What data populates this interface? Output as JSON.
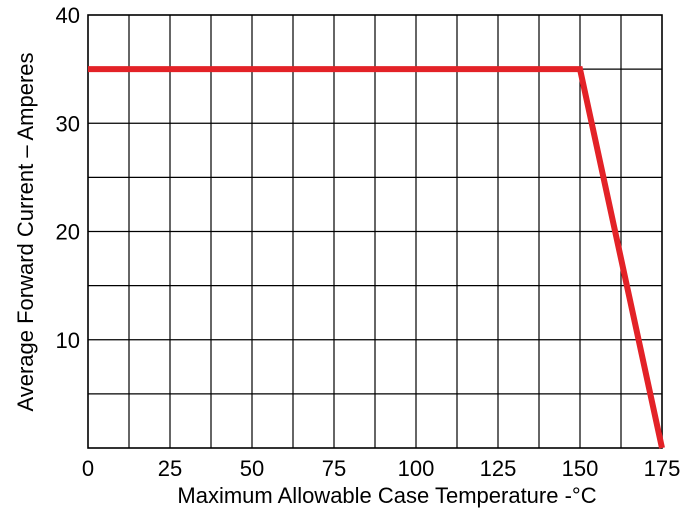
{
  "chart_data": {
    "type": "line",
    "title": "",
    "xlabel": "Maximum Allowable Case Temperature -°C",
    "ylabel": "Average Forward Current – Amperes",
    "xlim": [
      0,
      175
    ],
    "ylim": [
      0,
      40
    ],
    "x_ticks": [
      {
        "value": 0,
        "label": "0"
      },
      {
        "value": 25,
        "label": "25"
      },
      {
        "value": 50,
        "label": "50"
      },
      {
        "value": 75,
        "label": "75"
      },
      {
        "value": 100,
        "label": "100"
      },
      {
        "value": 125,
        "label": "125"
      },
      {
        "value": 150,
        "label": "150"
      },
      {
        "value": 175,
        "label": "175"
      }
    ],
    "y_ticks": [
      {
        "value": 10,
        "label": "10"
      },
      {
        "value": 20,
        "label": "20"
      },
      {
        "value": 30,
        "label": "30"
      },
      {
        "value": 40,
        "label": "40"
      }
    ],
    "x_grid_step": 12.5,
    "y_grid_step": 5,
    "grid": true,
    "series": [
      {
        "color": "#e32227",
        "x": [
          0,
          150,
          175
        ],
        "y": [
          35,
          35,
          0
        ]
      }
    ]
  }
}
